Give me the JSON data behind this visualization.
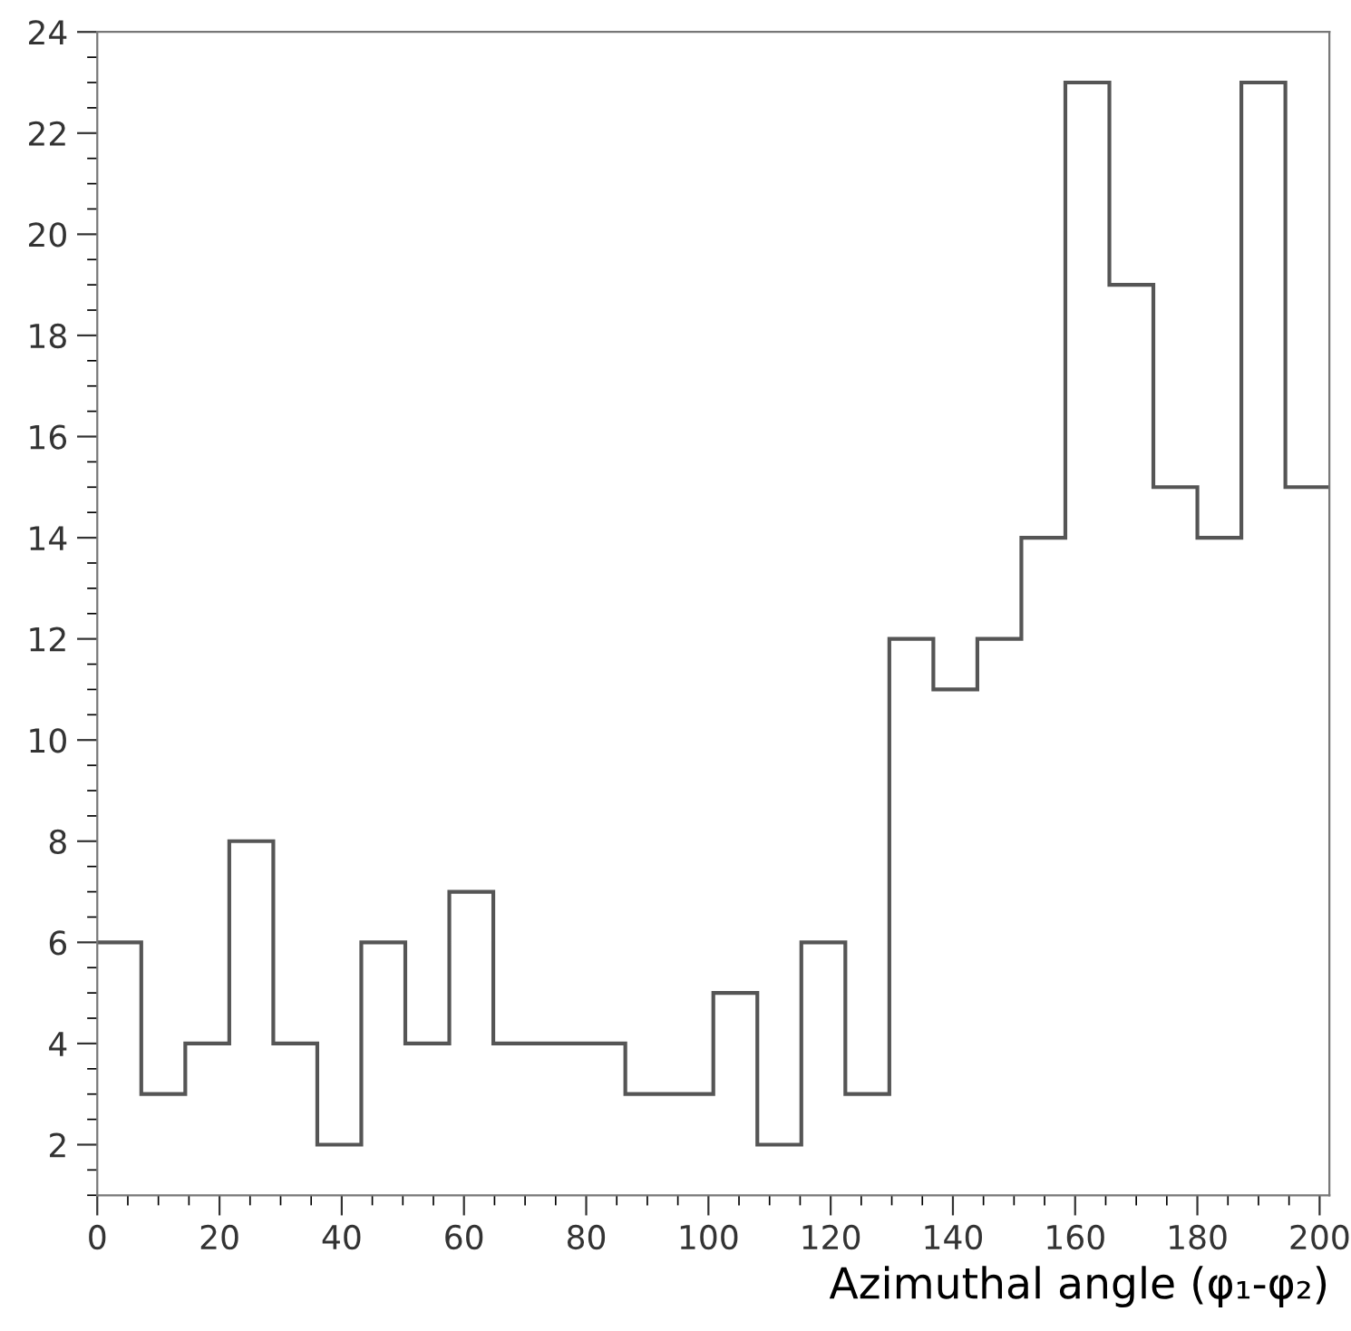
{
  "chart_data": {
    "type": "histogram",
    "xlabel": "Azimuthal angle (φ₁-φ₂)",
    "bins": [
      0,
      7.2,
      14.4,
      21.6,
      28.8,
      36,
      43.2,
      50.4,
      57.6,
      64.8,
      72,
      79.2,
      86.4,
      93.6,
      100.8,
      108,
      115.2,
      122.4,
      129.6,
      136.8,
      144,
      151.2,
      158.4,
      165.6,
      172.8,
      180,
      187.2,
      194.4,
      201.6
    ],
    "values": [
      6,
      3,
      4,
      8,
      4,
      2,
      6,
      4,
      7,
      4,
      4,
      4,
      3,
      3,
      5,
      2,
      6,
      3,
      12,
      11,
      12,
      14,
      23,
      19,
      15,
      14,
      23,
      15
    ],
    "color": "#555555",
    "xlim": [
      0,
      201.6
    ],
    "ylim": [
      1,
      24
    ],
    "xticks": [
      0,
      20,
      40,
      60,
      80,
      100,
      120,
      140,
      160,
      180,
      200
    ],
    "yticks": [
      2,
      4,
      6,
      8,
      10,
      12,
      14,
      16,
      18,
      20,
      22,
      24
    ],
    "grid": false,
    "legend": false
  }
}
